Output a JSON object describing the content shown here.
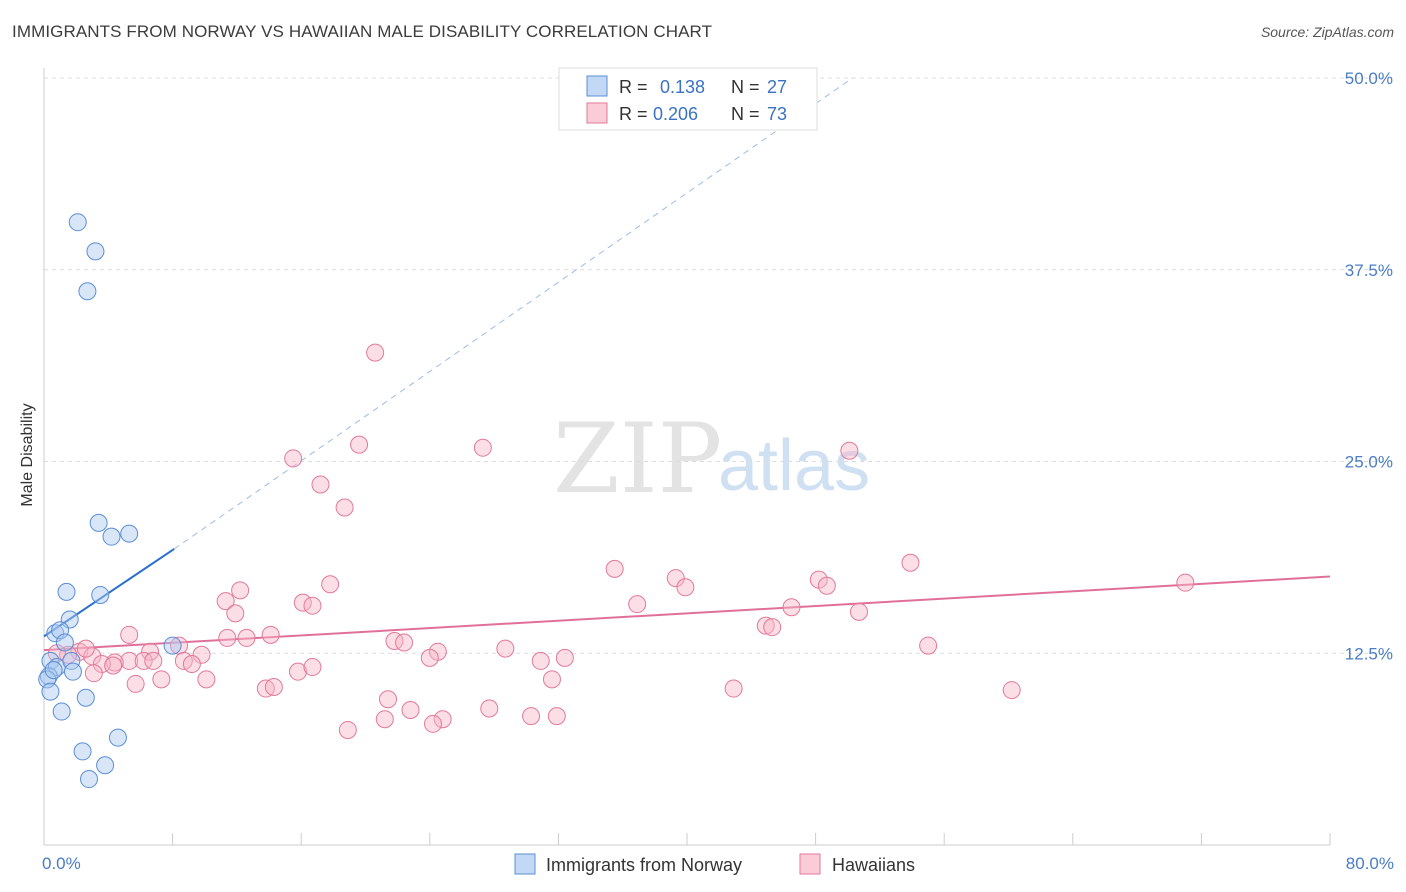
{
  "title": "IMMIGRANTS FROM NORWAY VS HAWAIIAN MALE DISABILITY CORRELATION CHART",
  "source": "Source: ZipAtlas.com",
  "watermark": {
    "part1": "ZIP",
    "part2": "atlas"
  },
  "legend": {
    "rows": [
      {
        "r_label": "R =",
        "r_value": "0.138",
        "n_label": "N =",
        "n_value": "27",
        "color": "#a8c8f0"
      },
      {
        "r_label": "R =",
        "r_value": "0.206",
        "n_label": "N =",
        "n_value": "73",
        "color": "#f7b6c8"
      }
    ]
  },
  "bottom_legend": [
    {
      "label": "Immigrants from Norway",
      "color": "#a8c8f0"
    },
    {
      "label": "Hawaiians",
      "color": "#f7b6c8"
    }
  ],
  "chart_data": {
    "type": "scatter",
    "title": "IMMIGRANTS FROM NORWAY VS HAWAIIAN MALE DISABILITY CORRELATION CHART",
    "xlabel": "",
    "ylabel": "Male Disability",
    "xlim": [
      0,
      80
    ],
    "ylim": [
      0,
      50
    ],
    "x_tick_labels": [
      {
        "value": 0,
        "label": "0.0%"
      },
      {
        "value": 80,
        "label": "80.0%"
      }
    ],
    "x_minor_ticks": [
      0,
      8,
      16,
      24,
      32,
      40,
      48,
      56,
      64,
      72,
      80
    ],
    "y_tick_labels": [
      {
        "value": 12.5,
        "label": "12.5%"
      },
      {
        "value": 25,
        "label": "25.0%"
      },
      {
        "value": 37.5,
        "label": "37.5%"
      },
      {
        "value": 50,
        "label": "50.0%"
      }
    ],
    "grid": true,
    "series": [
      {
        "name": "Immigrants from Norway",
        "color": "#a8c8f0",
        "stroke": "#5b8fd6",
        "trend": {
          "x0": 0,
          "y0": 13.6,
          "x1": 8.1,
          "y1": 19.3,
          "dash_to_x": 50.3,
          "dash_to_y": 50.0,
          "color": "#2a6fd0"
        },
        "points": [
          [
            2.1,
            40.6
          ],
          [
            3.2,
            38.7
          ],
          [
            2.7,
            36.1
          ],
          [
            3.4,
            21.0
          ],
          [
            4.2,
            20.1
          ],
          [
            5.3,
            20.3
          ],
          [
            1.4,
            16.5
          ],
          [
            3.5,
            16.3
          ],
          [
            1.6,
            14.7
          ],
          [
            0.7,
            13.8
          ],
          [
            1.0,
            14.0
          ],
          [
            1.3,
            13.2
          ],
          [
            0.4,
            12.0
          ],
          [
            0.8,
            11.6
          ],
          [
            1.7,
            12.0
          ],
          [
            1.8,
            11.3
          ],
          [
            0.3,
            11.0
          ],
          [
            0.2,
            10.8
          ],
          [
            0.4,
            10.0
          ],
          [
            2.6,
            9.6
          ],
          [
            1.1,
            8.7
          ],
          [
            4.6,
            7.0
          ],
          [
            2.4,
            6.1
          ],
          [
            3.8,
            5.2
          ],
          [
            2.8,
            4.3
          ],
          [
            8.0,
            13.0
          ],
          [
            0.6,
            11.4
          ]
        ]
      },
      {
        "name": "Hawaiians",
        "color": "#f7b6c8",
        "stroke": "#e27a9a",
        "trend": {
          "x0": 0,
          "y0": 12.7,
          "x1": 80,
          "y1": 17.5,
          "color": "#e0709a"
        },
        "points": [
          [
            20.6,
            32.1
          ],
          [
            19.6,
            26.1
          ],
          [
            27.3,
            25.9
          ],
          [
            50.1,
            25.7
          ],
          [
            15.5,
            25.2
          ],
          [
            17.2,
            23.5
          ],
          [
            18.7,
            22.0
          ],
          [
            35.5,
            18.0
          ],
          [
            53.9,
            18.4
          ],
          [
            39.3,
            17.4
          ],
          [
            48.2,
            17.3
          ],
          [
            71.0,
            17.1
          ],
          [
            17.8,
            17.0
          ],
          [
            12.2,
            16.6
          ],
          [
            39.9,
            16.8
          ],
          [
            48.7,
            16.9
          ],
          [
            11.3,
            15.9
          ],
          [
            16.1,
            15.8
          ],
          [
            16.7,
            15.6
          ],
          [
            36.9,
            15.7
          ],
          [
            46.5,
            15.5
          ],
          [
            50.7,
            15.2
          ],
          [
            11.9,
            15.1
          ],
          [
            44.9,
            14.3
          ],
          [
            45.3,
            14.2
          ],
          [
            5.3,
            13.7
          ],
          [
            14.1,
            13.7
          ],
          [
            11.4,
            13.5
          ],
          [
            12.6,
            13.5
          ],
          [
            21.8,
            13.3
          ],
          [
            22.4,
            13.2
          ],
          [
            8.4,
            13.0
          ],
          [
            55.0,
            13.0
          ],
          [
            6.6,
            12.6
          ],
          [
            9.8,
            12.4
          ],
          [
            24.5,
            12.6
          ],
          [
            28.7,
            12.8
          ],
          [
            2.2,
            12.6
          ],
          [
            3.0,
            12.3
          ],
          [
            5.3,
            12.0
          ],
          [
            4.4,
            11.9
          ],
          [
            6.2,
            12.0
          ],
          [
            3.6,
            11.8
          ],
          [
            8.7,
            12.0
          ],
          [
            6.8,
            12.0
          ],
          [
            4.3,
            11.7
          ],
          [
            9.2,
            11.8
          ],
          [
            24.0,
            12.2
          ],
          [
            30.9,
            12.0
          ],
          [
            32.4,
            12.2
          ],
          [
            3.1,
            11.2
          ],
          [
            15.8,
            11.3
          ],
          [
            16.7,
            11.6
          ],
          [
            10.1,
            10.8
          ],
          [
            7.3,
            10.8
          ],
          [
            13.8,
            10.2
          ],
          [
            14.3,
            10.3
          ],
          [
            31.6,
            10.8
          ],
          [
            5.7,
            10.5
          ],
          [
            42.9,
            10.2
          ],
          [
            60.2,
            10.1
          ],
          [
            21.4,
            9.5
          ],
          [
            22.8,
            8.8
          ],
          [
            27.7,
            8.9
          ],
          [
            21.2,
            8.2
          ],
          [
            24.8,
            8.2
          ],
          [
            24.2,
            7.9
          ],
          [
            30.3,
            8.4
          ],
          [
            31.9,
            8.4
          ],
          [
            18.9,
            7.5
          ],
          [
            1.5,
            12.4
          ],
          [
            0.8,
            12.5
          ],
          [
            2.6,
            12.8
          ]
        ]
      }
    ]
  }
}
